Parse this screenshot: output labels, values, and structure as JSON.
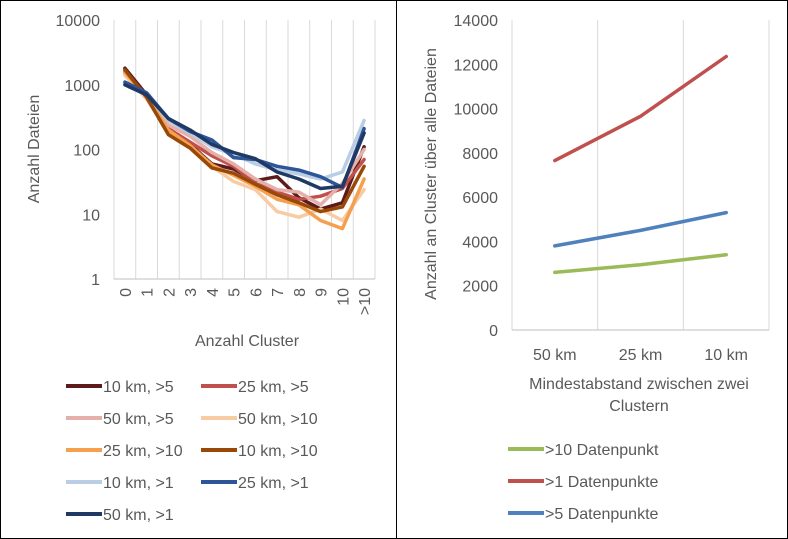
{
  "chart_data": [
    {
      "type": "line",
      "title": "",
      "xlabel": "Anzahl Cluster",
      "ylabel": "Anzahl Dateien",
      "y_scale": "log",
      "ylim": [
        1,
        10000
      ],
      "y_ticks": [
        "1",
        "10",
        "100",
        "1000",
        "10000"
      ],
      "categories": [
        "0",
        "1",
        "2",
        "3",
        "4",
        "5",
        "6",
        "7",
        "8",
        "9",
        "10",
        ">10"
      ],
      "grid": "vertical",
      "legend_position": "bottom",
      "series": [
        {
          "name": "10 km, >5",
          "color": "#5c1a1a",
          "values": [
            1800,
            700,
            190,
            120,
            60,
            50,
            33,
            38,
            18,
            12,
            15,
            110
          ]
        },
        {
          "name": "25 km, >5",
          "color": "#c0504d",
          "values": [
            1600,
            650,
            210,
            130,
            80,
            55,
            30,
            22,
            17,
            19,
            25,
            70
          ]
        },
        {
          "name": "50 km, >5",
          "color": "#e6b0aa",
          "values": [
            1500,
            680,
            240,
            160,
            90,
            60,
            35,
            24,
            22,
            14,
            30,
            100
          ]
        },
        {
          "name": "50 km, >10",
          "color": "#f8cba3",
          "values": [
            1400,
            600,
            190,
            110,
            55,
            32,
            24,
            11,
            9,
            12,
            8,
            24
          ]
        },
        {
          "name": "25 km, >10",
          "color": "#f4a04f",
          "values": [
            1550,
            650,
            200,
            115,
            58,
            40,
            27,
            17,
            14,
            8,
            6,
            35
          ]
        },
        {
          "name": "10 km, >10",
          "color": "#984807",
          "values": [
            1700,
            640,
            170,
            105,
            52,
            43,
            29,
            20,
            15,
            11,
            13,
            55
          ]
        },
        {
          "name": "10 km, >1",
          "color": "#b9cde5",
          "values": [
            1050,
            720,
            280,
            180,
            110,
            85,
            60,
            48,
            42,
            35,
            45,
            280
          ]
        },
        {
          "name": "25 km, >1",
          "color": "#2e5597",
          "values": [
            1100,
            750,
            300,
            190,
            140,
            75,
            70,
            55,
            48,
            38,
            26,
            210
          ]
        },
        {
          "name": "50 km, >1",
          "color": "#1f3864",
          "values": [
            1000,
            700,
            300,
            200,
            120,
            90,
            72,
            45,
            35,
            25,
            27,
            180
          ]
        }
      ]
    },
    {
      "type": "line",
      "title": "",
      "xlabel": "Mindestabstand zwischen zwei Clustern",
      "ylabel": "Anzahl an Cluster über alle Dateien",
      "ylim": [
        0,
        14000
      ],
      "y_ticks": [
        "0",
        "2000",
        "4000",
        "6000",
        "8000",
        "10000",
        "12000",
        "14000"
      ],
      "categories": [
        "50 km",
        "25 km",
        "10 km"
      ],
      "grid": "vertical",
      "legend_position": "bottom",
      "series": [
        {
          "name": ">10 Datenpunkt",
          "color": "#9bbb59",
          "values": [
            2600,
            2950,
            3400
          ]
        },
        {
          "name": ">1 Datenpunkte",
          "color": "#c0504d",
          "values": [
            7650,
            9650,
            12350
          ]
        },
        {
          "name": ">5 Datenpunkte",
          "color": "#4f81bd",
          "values": [
            3800,
            4500,
            5300
          ]
        }
      ]
    }
  ]
}
